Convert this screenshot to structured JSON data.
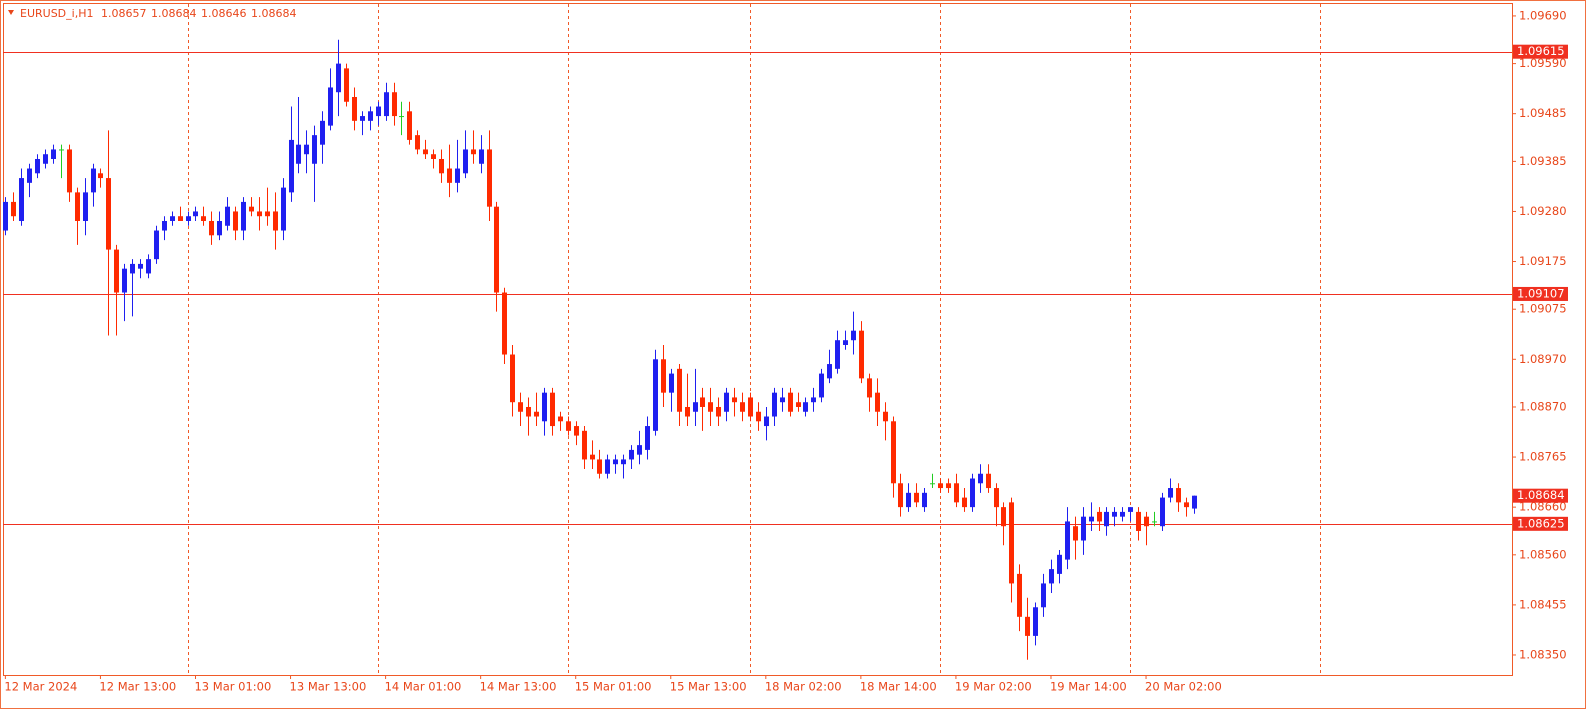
{
  "chart_data": {
    "type": "candlestick",
    "symbol": "EURUSD_i,H1",
    "open": [
      1.0924,
      1.093,
      1.0926,
      1.0934,
      1.0936,
      1.0938,
      1.0939,
      1.0941,
      1.0941,
      1.0932,
      1.0926,
      1.0932,
      1.0936,
      1.0935,
      1.092,
      1.0911,
      1.0915,
      1.0916,
      1.0915,
      1.0918,
      1.0924,
      1.0926,
      1.0927,
      1.0926,
      1.0927,
      1.0927,
      1.0926,
      1.0923,
      1.0925,
      1.0928,
      1.0924,
      1.0929,
      1.0928,
      1.0928,
      1.0928,
      1.0924,
      1.0932,
      1.0938,
      1.094,
      1.0938,
      1.0942,
      1.0946,
      1.0953,
      1.0958,
      1.0952,
      1.0947,
      1.0947,
      1.0948,
      1.0948,
      1.0953,
      1.0948,
      1.0949,
      1.0944,
      1.0941,
      1.094,
      1.0939,
      1.0937,
      1.0934,
      1.0936,
      1.0941,
      1.0938,
      1.0941,
      1.0929,
      1.0911,
      1.0898,
      1.0888,
      1.0887,
      1.0886,
      1.0884,
      1.089,
      1.0885,
      1.0884,
      1.0883,
      1.0882,
      1.0877,
      1.0876,
      1.0873,
      1.0875,
      1.0875,
      1.0876,
      1.0877,
      1.0878,
      1.0882,
      1.0897,
      1.089,
      1.0895,
      1.0887,
      1.0886,
      1.0889,
      1.0888,
      1.0887,
      1.0886,
      1.0889,
      1.0888,
      1.0889,
      1.0886,
      1.0883,
      1.0885,
      1.0888,
      1.089,
      1.0888,
      1.0886,
      1.0888,
      1.0889,
      1.0893,
      1.0895,
      1.09,
      1.0901,
      1.0903,
      1.0893,
      1.089,
      1.0886,
      1.0884,
      1.0871,
      1.0866,
      1.0869,
      1.0866,
      1.0871,
      1.0871,
      1.0871,
      1.0871,
      1.0868,
      1.0866,
      1.0871,
      1.0873,
      1.087,
      1.0866,
      1.0867,
      1.0852,
      1.0843,
      1.0839,
      1.0845,
      1.085,
      1.0852,
      1.0855,
      1.0862,
      1.0859,
      1.0863,
      1.0865,
      1.0862,
      1.0864,
      1.0864,
      1.0865,
      1.0865,
      1.0864,
      1.0863,
      1.0862,
      1.0868,
      1.087,
      1.0867,
      1.08657
    ],
    "high": [
      1.0931,
      1.0932,
      1.0937,
      1.0938,
      1.094,
      1.0941,
      1.0942,
      1.0942,
      1.0942,
      1.0933,
      1.0935,
      1.0938,
      1.0937,
      1.0945,
      1.0921,
      1.0917,
      1.0918,
      1.0918,
      1.0919,
      1.0925,
      1.0927,
      1.0928,
      1.0929,
      1.0928,
      1.0929,
      1.0929,
      1.0928,
      1.0928,
      1.0931,
      1.0929,
      1.0931,
      1.0931,
      1.0931,
      1.0933,
      1.0932,
      1.0935,
      1.095,
      1.0952,
      1.0945,
      1.0946,
      1.0949,
      1.0958,
      1.0964,
      1.0959,
      1.0954,
      1.0949,
      1.095,
      1.0951,
      1.0955,
      1.0955,
      1.0951,
      1.0951,
      1.0945,
      1.0943,
      1.0941,
      1.0941,
      1.0942,
      1.0943,
      1.0945,
      1.0945,
      1.0944,
      1.0945,
      1.093,
      1.0912,
      1.09,
      1.089,
      1.0889,
      1.089,
      1.0891,
      1.0891,
      1.0886,
      1.0885,
      1.0884,
      1.0883,
      1.088,
      1.0878,
      1.0877,
      1.0877,
      1.0877,
      1.0879,
      1.0882,
      1.0885,
      1.0899,
      1.09,
      1.0895,
      1.0896,
      1.0894,
      1.0895,
      1.0891,
      1.0891,
      1.0889,
      1.0891,
      1.0891,
      1.089,
      1.089,
      1.0888,
      1.0887,
      1.0891,
      1.0891,
      1.0891,
      1.089,
      1.0889,
      1.0891,
      1.0895,
      1.0899,
      1.0903,
      1.0903,
      1.0907,
      1.0905,
      1.0894,
      1.0893,
      1.0888,
      1.0885,
      1.0873,
      1.0871,
      1.0871,
      1.087,
      1.0873,
      1.0872,
      1.0872,
      1.0873,
      1.087,
      1.0873,
      1.0875,
      1.0875,
      1.0871,
      1.0867,
      1.0868,
      1.0854,
      1.0847,
      1.0846,
      1.0852,
      1.0855,
      1.0857,
      1.0866,
      1.0864,
      1.0866,
      1.0867,
      1.0866,
      1.0866,
      1.0866,
      1.0866,
      1.0866,
      1.0866,
      1.0865,
      1.0865,
      1.0869,
      1.0872,
      1.0871,
      1.0868,
      1.08684
    ],
    "low": [
      1.0923,
      1.0926,
      1.0925,
      1.0931,
      1.0935,
      1.0937,
      1.0938,
      1.0935,
      1.093,
      1.0921,
      1.0923,
      1.0929,
      1.0933,
      1.0902,
      1.0902,
      1.0905,
      1.0906,
      1.0914,
      1.0914,
      1.0917,
      1.0922,
      1.0925,
      1.0926,
      1.0925,
      1.0926,
      1.0925,
      1.0921,
      1.0922,
      1.0924,
      1.0922,
      1.0922,
      1.0927,
      1.0924,
      1.0925,
      1.092,
      1.0922,
      1.093,
      1.0936,
      1.0936,
      1.093,
      1.0938,
      1.0945,
      1.0948,
      1.095,
      1.0945,
      1.0944,
      1.0945,
      1.0946,
      1.0947,
      1.0946,
      1.0944,
      1.0942,
      1.094,
      1.0939,
      1.0937,
      1.0934,
      1.0931,
      1.0932,
      1.0935,
      1.0938,
      1.0936,
      1.0926,
      1.0907,
      1.0896,
      1.0885,
      1.0883,
      1.0881,
      1.0883,
      1.0881,
      1.0881,
      1.0882,
      1.0881,
      1.0879,
      1.0874,
      1.0874,
      1.0872,
      1.0872,
      1.0873,
      1.0872,
      1.0874,
      1.0875,
      1.0876,
      1.0881,
      1.0887,
      1.0886,
      1.0883,
      1.0883,
      1.0883,
      1.0882,
      1.0883,
      1.0883,
      1.0884,
      1.0885,
      1.0884,
      1.0884,
      1.0882,
      1.088,
      1.0883,
      1.0886,
      1.0885,
      1.0886,
      1.0885,
      1.0886,
      1.0888,
      1.0892,
      1.0894,
      1.0899,
      1.0898,
      1.0892,
      1.0886,
      1.0883,
      1.088,
      1.0868,
      1.0864,
      1.0865,
      1.0866,
      1.0865,
      1.087,
      1.0869,
      1.0869,
      1.0866,
      1.0865,
      1.0865,
      1.0869,
      1.0869,
      1.0862,
      1.0858,
      1.0846,
      1.084,
      1.0834,
      1.0837,
      1.0843,
      1.0848,
      1.085,
      1.0853,
      1.0855,
      1.0856,
      1.0861,
      1.0861,
      1.086,
      1.0862,
      1.0863,
      1.0863,
      1.0859,
      1.0858,
      1.0862,
      1.0861,
      1.0867,
      1.0865,
      1.0864,
      1.08646
    ],
    "close": [
      1.093,
      1.0927,
      1.0935,
      1.0937,
      1.0939,
      1.094,
      1.0941,
      1.0941,
      1.0932,
      1.0926,
      1.0932,
      1.0937,
      1.0935,
      1.092,
      1.0911,
      1.0916,
      1.0917,
      1.0917,
      1.0918,
      1.0924,
      1.0926,
      1.0927,
      1.0926,
      1.0927,
      1.0928,
      1.0926,
      1.0923,
      1.0926,
      1.0929,
      1.0924,
      1.093,
      1.0928,
      1.0927,
      1.0927,
      1.0924,
      1.0933,
      1.0943,
      1.0942,
      1.0942,
      1.0944,
      1.0947,
      1.0954,
      1.0959,
      1.0951,
      1.0947,
      1.0948,
      1.0949,
      1.095,
      1.0953,
      1.0948,
      1.0948,
      1.0943,
      1.0941,
      1.094,
      1.0939,
      1.0936,
      1.0934,
      1.0937,
      1.0941,
      1.094,
      1.0941,
      1.0929,
      1.0911,
      1.0898,
      1.0888,
      1.0886,
      1.0885,
      1.0885,
      1.089,
      1.0883,
      1.0884,
      1.0882,
      1.0881,
      1.0876,
      1.0876,
      1.0873,
      1.0876,
      1.0876,
      1.0876,
      1.0878,
      1.0879,
      1.0883,
      1.0897,
      1.089,
      1.0894,
      1.0886,
      1.0885,
      1.0888,
      1.0887,
      1.0886,
      1.0885,
      1.089,
      1.0888,
      1.0886,
      1.0885,
      1.0884,
      1.0885,
      1.089,
      1.0889,
      1.0886,
      1.0887,
      1.0888,
      1.0889,
      1.0894,
      1.0896,
      1.0901,
      1.0901,
      1.0903,
      1.0893,
      1.0889,
      1.0886,
      1.0884,
      1.0871,
      1.0866,
      1.0869,
      1.0867,
      1.0869,
      1.0871,
      1.087,
      1.087,
      1.0867,
      1.0866,
      1.0872,
      1.0873,
      1.087,
      1.0866,
      1.0862,
      1.085,
      1.0843,
      1.0839,
      1.0845,
      1.085,
      1.0853,
      1.0856,
      1.0863,
      1.0859,
      1.0864,
      1.0864,
      1.0863,
      1.0865,
      1.0865,
      1.0865,
      1.0866,
      1.0861,
      1.0862,
      1.0863,
      1.0868,
      1.087,
      1.0867,
      1.0866,
      1.08684
    ],
    "xlim": [
      -0.3,
      190.2
    ],
    "ylim": [
      1.08308,
      1.09715
    ],
    "yticks": [
      {
        "value": 1.0969,
        "label": "1.09690"
      },
      {
        "value": 1.0959,
        "label": "1.09590"
      },
      1.09485,
      1.09385,
      {
        "value": 1.0928,
        "label": "1.09280"
      },
      1.09175,
      1.09075,
      {
        "value": 1.0897,
        "label": "1.08970"
      },
      {
        "value": 1.0887,
        "label": "1.08870"
      },
      1.08765,
      {
        "value": 1.0866,
        "label": "1.08660"
      },
      {
        "value": 1.0856,
        "label": "1.08560"
      },
      1.08455,
      {
        "value": 1.0835,
        "label": "1.08350"
      }
    ],
    "xticks": [
      {
        "value": 0,
        "label": "12 Mar 2024"
      },
      {
        "value": 12,
        "label": "12 Mar 13:00"
      },
      {
        "value": 24,
        "label": "13 Mar 01:00"
      },
      {
        "value": 36,
        "label": "13 Mar 13:00"
      },
      {
        "value": 48,
        "label": "14 Mar 01:00"
      },
      {
        "value": 60,
        "label": "14 Mar 13:00"
      },
      {
        "value": 72,
        "label": "15 Mar 01:00"
      },
      {
        "value": 84,
        "label": "15 Mar 13:00"
      },
      {
        "value": 96,
        "label": "18 Mar 02:00"
      },
      {
        "value": 108,
        "label": "18 Mar 14:00"
      },
      {
        "value": 120,
        "label": "19 Mar 02:00"
      },
      {
        "value": 132,
        "label": "19 Mar 14:00"
      },
      {
        "value": 144,
        "label": "20 Mar 02:00"
      }
    ],
    "separators": [
      23,
      47,
      71,
      94,
      118,
      142,
      166
    ],
    "levels": [
      1.09615,
      1.09107,
      1.08625
    ],
    "up_color": "#1f1ff0",
    "down_color": "#ff2a00",
    "doji_color": "#22cc22",
    "level_color": "#f03020",
    "axis_color": "#f05a28"
  }
}
